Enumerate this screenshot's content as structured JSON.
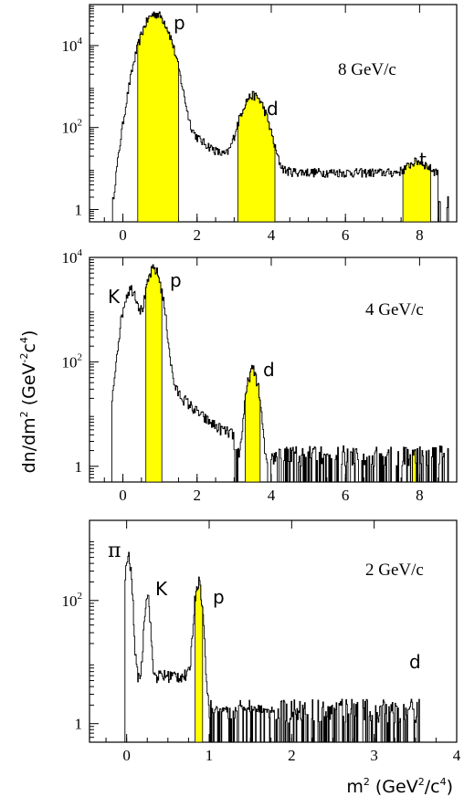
{
  "chart_data": [
    {
      "type": "area",
      "panel_label": "8 GeV/c",
      "x_range": [
        -0.9,
        9.0
      ],
      "y_scale": "log",
      "y_range": [
        0.5,
        100000
      ],
      "x_ticks": [
        0,
        2,
        4,
        6,
        8
      ],
      "x_tick_labels": [
        "0",
        "2",
        "4",
        "6",
        "8"
      ],
      "y_ticks": [
        1,
        100,
        10000
      ],
      "y_tick_labels": [
        {
          "base": "1",
          "exp": ""
        },
        {
          "base": "10",
          "exp": "2"
        },
        {
          "base": "10",
          "exp": "4"
        }
      ],
      "peaks": [
        {
          "label": "p",
          "center": 0.88,
          "sigma": 0.25,
          "height": 60000,
          "highlight": [
            0.4,
            1.5
          ]
        },
        {
          "label": "d",
          "center": 3.52,
          "sigma": 0.23,
          "height": 600,
          "highlight": [
            3.1,
            4.1
          ]
        },
        {
          "label": "t",
          "center": 7.95,
          "sigma": 0.22,
          "height": 7,
          "highlight": [
            7.55,
            8.3
          ]
        }
      ],
      "x_start": -0.3,
      "x_end": 8.8
    },
    {
      "type": "area",
      "panel_label": "4 GeV/c",
      "x_range": [
        -0.9,
        9.0
      ],
      "y_scale": "log",
      "y_range": [
        0.5,
        10000
      ],
      "x_ticks": [
        0,
        2,
        4,
        6,
        8
      ],
      "x_tick_labels": [
        "0",
        "2",
        "4",
        "6",
        "8"
      ],
      "y_ticks": [
        1,
        100,
        10000
      ],
      "y_tick_labels": [
        {
          "base": "1",
          "exp": ""
        },
        {
          "base": "10",
          "exp": "2"
        },
        {
          "base": "10",
          "exp": "4"
        }
      ],
      "peaks": [
        {
          "label": "K",
          "center": 0.22,
          "sigma": 0.16,
          "height": 2500,
          "highlight": null
        },
        {
          "label": "p",
          "center": 0.84,
          "sigma": 0.15,
          "height": 6000,
          "highlight": [
            0.62,
            1.05
          ]
        },
        {
          "label": "d",
          "center": 3.5,
          "sigma": 0.12,
          "height": 70,
          "highlight": [
            3.3,
            3.7
          ]
        },
        {
          "label": "",
          "center": 7.85,
          "sigma": 0.06,
          "height": 2,
          "highlight": [
            7.75,
            7.95
          ]
        }
      ],
      "x_start": -0.3,
      "x_end": 8.8
    },
    {
      "type": "area",
      "panel_label": "2 GeV/c",
      "x_range": [
        -0.45,
        4.0
      ],
      "y_scale": "log",
      "y_range": [
        0.5,
        2000
      ],
      "x_ticks": [
        0,
        1,
        2,
        3,
        4
      ],
      "x_tick_labels": [
        "0",
        "1",
        "2",
        "3",
        "4"
      ],
      "y_ticks": [
        1,
        100
      ],
      "y_tick_labels": [
        {
          "base": "1",
          "exp": ""
        },
        {
          "base": "10",
          "exp": "2"
        }
      ],
      "peaks": [
        {
          "label": "π",
          "center": 0.02,
          "sigma": 0.03,
          "height": 500,
          "highlight": null
        },
        {
          "label": "K",
          "center": 0.25,
          "sigma": 0.025,
          "height": 120,
          "highlight": null
        },
        {
          "label": "p",
          "center": 0.87,
          "sigma": 0.035,
          "height": 200,
          "highlight": [
            0.83,
            0.92
          ]
        },
        {
          "label": "d",
          "center": 3.45,
          "sigma": 0.05,
          "height": 2,
          "highlight": null
        }
      ],
      "x_start": -0.02,
      "x_end": 3.55,
      "xlabel_parts": [
        "m",
        "2",
        " (GeV",
        "2",
        "/c",
        "4",
        ")"
      ]
    }
  ],
  "ylabel_parts": [
    "dn/dm",
    "2",
    " (GeV",
    "-2",
    "c",
    "4",
    ")"
  ]
}
